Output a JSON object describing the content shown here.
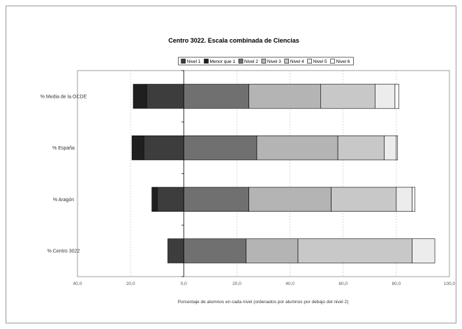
{
  "chart_data": {
    "type": "bar",
    "orientation": "horizontal",
    "stacked": true,
    "title": "Centro 3022. Escala combinada de Ciencias",
    "xlabel": "Porcentaje de alumnos en cada nivel (ordenados por alumnos por debajo del nivel 2)",
    "ylabel": "",
    "xlim": [
      -40,
      100
    ],
    "x_ticks": [
      "40,0",
      "20,0",
      "0,0",
      "20,0",
      "40,0",
      "60,0",
      "80,0",
      "100,0"
    ],
    "x_tick_values": [
      -40,
      -20,
      0,
      20,
      40,
      60,
      80,
      100
    ],
    "grid": true,
    "legend_position": "top",
    "categories": [
      "% Media de la OCDE",
      "% España",
      "% Aragón",
      "% Centro 3022"
    ],
    "series": [
      {
        "name": "Nivel 1",
        "color": "#3d3d3d",
        "direction": "negative",
        "values": [
          14,
          15,
          10,
          6
        ]
      },
      {
        "name": "Menor que 1",
        "color": "#1f1f1f",
        "direction": "negative",
        "values": [
          5,
          4.5,
          2,
          0
        ]
      },
      {
        "name": "Nivel 2",
        "color": "#707070",
        "direction": "positive",
        "values": [
          24.5,
          27.5,
          24.5,
          23.5
        ]
      },
      {
        "name": "Nivel 3",
        "color": "#b4b4b4",
        "direction": "positive",
        "values": [
          27,
          30.5,
          31,
          19.5
        ]
      },
      {
        "name": "Nivel 4",
        "color": "#c8c8c8",
        "direction": "positive",
        "values": [
          20.5,
          17.5,
          24.5,
          43
        ]
      },
      {
        "name": "Nivel 5",
        "color": "#ececec",
        "direction": "positive",
        "values": [
          7.5,
          4.5,
          6,
          8.5
        ]
      },
      {
        "name": "Nivel 6",
        "color": "#ffffff",
        "direction": "positive",
        "values": [
          1.5,
          0.5,
          1,
          0
        ]
      }
    ]
  }
}
